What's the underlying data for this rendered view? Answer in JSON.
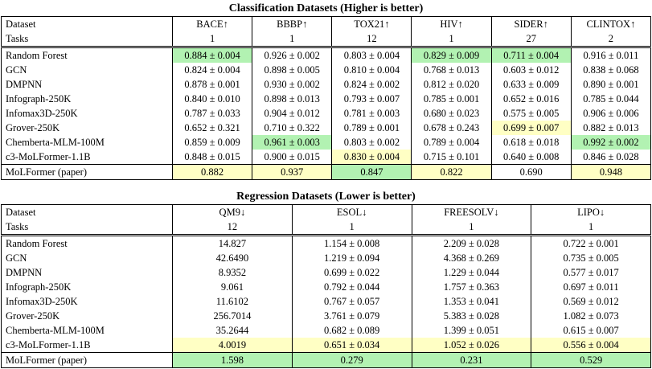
{
  "colors": {
    "best_highlight": "#b2f2b2",
    "second_highlight": "#ffffc4"
  },
  "classification": {
    "title": "Classification Datasets (Higher is better)",
    "dataset_label": "Dataset",
    "tasks_label": "Tasks",
    "columns": [
      {
        "name": "BACE↑",
        "tasks": "1"
      },
      {
        "name": "BBBP↑",
        "tasks": "1"
      },
      {
        "name": "TOX21↑",
        "tasks": "12"
      },
      {
        "name": "HIV↑",
        "tasks": "1"
      },
      {
        "name": "SIDER↑",
        "tasks": "27"
      },
      {
        "name": "CLINTOX↑",
        "tasks": "2"
      }
    ],
    "rows": [
      {
        "model": "Random Forest",
        "cells": [
          {
            "text": "0.884 ± 0.004",
            "hl": "green"
          },
          {
            "text": "0.926 ± 0.002"
          },
          {
            "text": "0.803 ± 0.004"
          },
          {
            "text": "0.829 ± 0.009",
            "hl": "green"
          },
          {
            "text": "0.711 ± 0.004",
            "hl": "green"
          },
          {
            "text": "0.916 ± 0.011"
          }
        ]
      },
      {
        "model": "GCN",
        "cells": [
          {
            "text": "0.824 ± 0.004"
          },
          {
            "text": "0.898 ± 0.005"
          },
          {
            "text": "0.810 ± 0.004"
          },
          {
            "text": "0.768 ± 0.013"
          },
          {
            "text": "0.603 ± 0.012"
          },
          {
            "text": "0.838 ± 0.068"
          }
        ]
      },
      {
        "model": "DMPNN",
        "cells": [
          {
            "text": "0.878 ± 0.001"
          },
          {
            "text": "0.930 ± 0.002"
          },
          {
            "text": "0.824 ± 0.002"
          },
          {
            "text": "0.812 ± 0.020"
          },
          {
            "text": "0.633 ± 0.009"
          },
          {
            "text": "0.890 ± 0.001"
          }
        ]
      },
      {
        "model": "Infograph-250K",
        "cells": [
          {
            "text": "0.840 ± 0.010"
          },
          {
            "text": "0.898 ± 0.013"
          },
          {
            "text": "0.793 ± 0.007"
          },
          {
            "text": "0.785 ± 0.001"
          },
          {
            "text": "0.652 ± 0.016"
          },
          {
            "text": "0.785 ± 0.044"
          }
        ]
      },
      {
        "model": "Infomax3D-250K",
        "cells": [
          {
            "text": "0.787 ± 0.033"
          },
          {
            "text": "0.904 ± 0.012"
          },
          {
            "text": "0.781 ± 0.003"
          },
          {
            "text": "0.680 ± 0.023"
          },
          {
            "text": "0.575 ± 0.005"
          },
          {
            "text": "0.906 ± 0.006"
          }
        ]
      },
      {
        "model": "Grover-250K",
        "cells": [
          {
            "text": "0.652 ± 0.321"
          },
          {
            "text": "0.710 ± 0.322"
          },
          {
            "text": "0.789 ± 0.001"
          },
          {
            "text": "0.678 ± 0.243"
          },
          {
            "text": "0.699 ± 0.007",
            "hl": "yellow"
          },
          {
            "text": "0.882 ± 0.013"
          }
        ]
      },
      {
        "model": "Chemberta-MLM-100M",
        "cells": [
          {
            "text": "0.859 ± 0.009"
          },
          {
            "text": "0.961 ± 0.003",
            "hl": "green"
          },
          {
            "text": "0.803 ± 0.002"
          },
          {
            "text": "0.789 ± 0.004"
          },
          {
            "text": "0.618 ± 0.018"
          },
          {
            "text": "0.992 ± 0.002",
            "hl": "green"
          }
        ]
      },
      {
        "model": "c3-MoLFormer-1.1B",
        "cells": [
          {
            "text": "0.848 ± 0.015"
          },
          {
            "text": "0.900 ± 0.015"
          },
          {
            "text": "0.830 ± 0.004",
            "hl": "yellow"
          },
          {
            "text": "0.715 ± 0.101"
          },
          {
            "text": "0.640 ± 0.008"
          },
          {
            "text": "0.846 ± 0.028"
          }
        ]
      },
      {
        "model": "MoLFormer (paper)",
        "cells": [
          {
            "text": "0.882",
            "hl": "yellow"
          },
          {
            "text": "0.937",
            "hl": "yellow"
          },
          {
            "text": "0.847",
            "hl": "green"
          },
          {
            "text": "0.822",
            "hl": "yellow"
          },
          {
            "text": "0.690"
          },
          {
            "text": "0.948",
            "hl": "yellow"
          }
        ]
      }
    ]
  },
  "regression": {
    "title": "Regression Datasets (Lower is better)",
    "dataset_label": "Dataset",
    "tasks_label": "Tasks",
    "columns": [
      {
        "name": "QM9↓",
        "tasks": "12"
      },
      {
        "name": "ESOL↓",
        "tasks": "1"
      },
      {
        "name": "FREESOLV↓",
        "tasks": "1"
      },
      {
        "name": "LIPO↓",
        "tasks": "1"
      }
    ],
    "rows": [
      {
        "model": "Random Forest",
        "cells": [
          {
            "text": "14.827"
          },
          {
            "text": "1.154 ± 0.008"
          },
          {
            "text": "2.209 ± 0.028"
          },
          {
            "text": "0.722 ± 0.001"
          }
        ]
      },
      {
        "model": "GCN",
        "cells": [
          {
            "text": "42.6490"
          },
          {
            "text": "1.219 ± 0.094"
          },
          {
            "text": "4.368 ± 0.269"
          },
          {
            "text": "0.735 ± 0.005"
          }
        ]
      },
      {
        "model": "DMPNN",
        "cells": [
          {
            "text": "8.9352"
          },
          {
            "text": "0.699 ± 0.022"
          },
          {
            "text": "1.229 ± 0.044"
          },
          {
            "text": "0.577 ± 0.017"
          }
        ]
      },
      {
        "model": "Infograph-250K",
        "cells": [
          {
            "text": "9.061"
          },
          {
            "text": "0.792 ± 0.044"
          },
          {
            "text": "1.757 ± 0.363"
          },
          {
            "text": "0.697 ± 0.011"
          }
        ]
      },
      {
        "model": "Infomax3D-250K",
        "cells": [
          {
            "text": "11.6102"
          },
          {
            "text": "0.767 ± 0.057"
          },
          {
            "text": "1.353 ± 0.041"
          },
          {
            "text": "0.569 ± 0.012"
          }
        ]
      },
      {
        "model": "Grover-250K",
        "cells": [
          {
            "text": "256.7014"
          },
          {
            "text": "3.761 ± 0.079"
          },
          {
            "text": "5.383 ± 0.028"
          },
          {
            "text": "1.082 ± 0.073"
          }
        ]
      },
      {
        "model": "Chemberta-MLM-100M",
        "cells": [
          {
            "text": "35.2644"
          },
          {
            "text": "0.682 ± 0.089"
          },
          {
            "text": "1.399 ± 0.051"
          },
          {
            "text": "0.615 ± 0.007"
          }
        ]
      },
      {
        "model": "c3-MoLFormer-1.1B",
        "cells": [
          {
            "text": "4.0019",
            "hl": "yellow"
          },
          {
            "text": "0.651 ± 0.034",
            "hl": "yellow"
          },
          {
            "text": "1.052 ± 0.026",
            "hl": "yellow"
          },
          {
            "text": "0.556 ± 0.004",
            "hl": "yellow"
          }
        ]
      },
      {
        "model": "MoLFormer (paper)",
        "cells": [
          {
            "text": "1.598",
            "hl": "green"
          },
          {
            "text": "0.279",
            "hl": "green"
          },
          {
            "text": "0.231",
            "hl": "green"
          },
          {
            "text": "0.529",
            "hl": "green"
          }
        ]
      }
    ]
  }
}
